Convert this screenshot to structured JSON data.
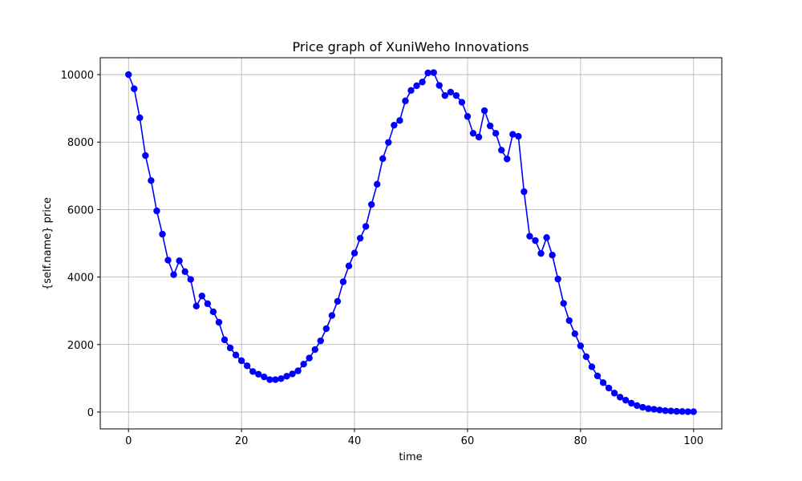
{
  "chart_data": {
    "type": "line",
    "title": "Price graph of XuniWeho Innovations",
    "xlabel": "time",
    "ylabel": "{self.name} price",
    "xlim": [
      -5,
      105
    ],
    "ylim": [
      -500,
      10500
    ],
    "xticks": [
      0,
      20,
      40,
      60,
      80,
      100
    ],
    "yticks": [
      0,
      2000,
      4000,
      6000,
      8000,
      10000
    ],
    "grid": true,
    "marker": "circle",
    "color": "#0000ff",
    "series": [
      {
        "x": [
          0,
          1,
          2,
          3,
          4,
          5,
          6,
          7,
          8,
          9,
          10,
          11,
          12,
          13,
          14,
          15,
          16,
          17,
          18,
          19,
          20,
          21,
          22,
          23,
          24,
          25,
          26,
          27,
          28,
          29,
          30,
          31,
          32,
          33,
          34,
          35,
          36,
          37,
          38,
          39,
          40,
          41,
          42,
          43,
          44,
          45,
          46,
          47,
          48,
          49,
          50,
          51,
          52,
          53,
          54,
          55,
          56,
          57,
          58,
          59,
          60,
          61,
          62,
          63,
          64,
          65,
          66,
          67,
          68,
          69,
          70,
          71,
          72,
          73,
          74,
          75,
          76,
          77,
          78,
          79,
          80,
          81,
          82,
          83,
          84,
          85,
          86,
          87,
          88,
          89,
          90,
          91,
          92,
          93,
          94,
          95,
          96,
          97,
          98,
          99,
          100
        ],
        "values": [
          10000,
          9580,
          8720,
          7600,
          6860,
          5960,
          5270,
          4500,
          4070,
          4480,
          4160,
          3930,
          3140,
          3440,
          3210,
          2970,
          2660,
          2140,
          1900,
          1690,
          1520,
          1370,
          1200,
          1120,
          1040,
          960,
          960,
          990,
          1060,
          1130,
          1220,
          1420,
          1600,
          1850,
          2110,
          2470,
          2860,
          3280,
          3860,
          4330,
          4710,
          5150,
          5500,
          6150,
          6750,
          7510,
          7990,
          8500,
          8640,
          9220,
          9530,
          9670,
          9780,
          10050,
          10060,
          9680,
          9380,
          9480,
          9380,
          9180,
          8760,
          8260,
          8150,
          8930,
          8480,
          8260,
          7760,
          7500,
          8230,
          8170,
          6530,
          5210,
          5080,
          4700,
          5170,
          4650,
          3940,
          3220,
          2710,
          2320,
          1960,
          1640,
          1340,
          1070,
          870,
          710,
          560,
          440,
          350,
          260,
          190,
          140,
          100,
          80,
          60,
          40,
          30,
          20,
          15,
          10,
          10
        ]
      }
    ]
  }
}
